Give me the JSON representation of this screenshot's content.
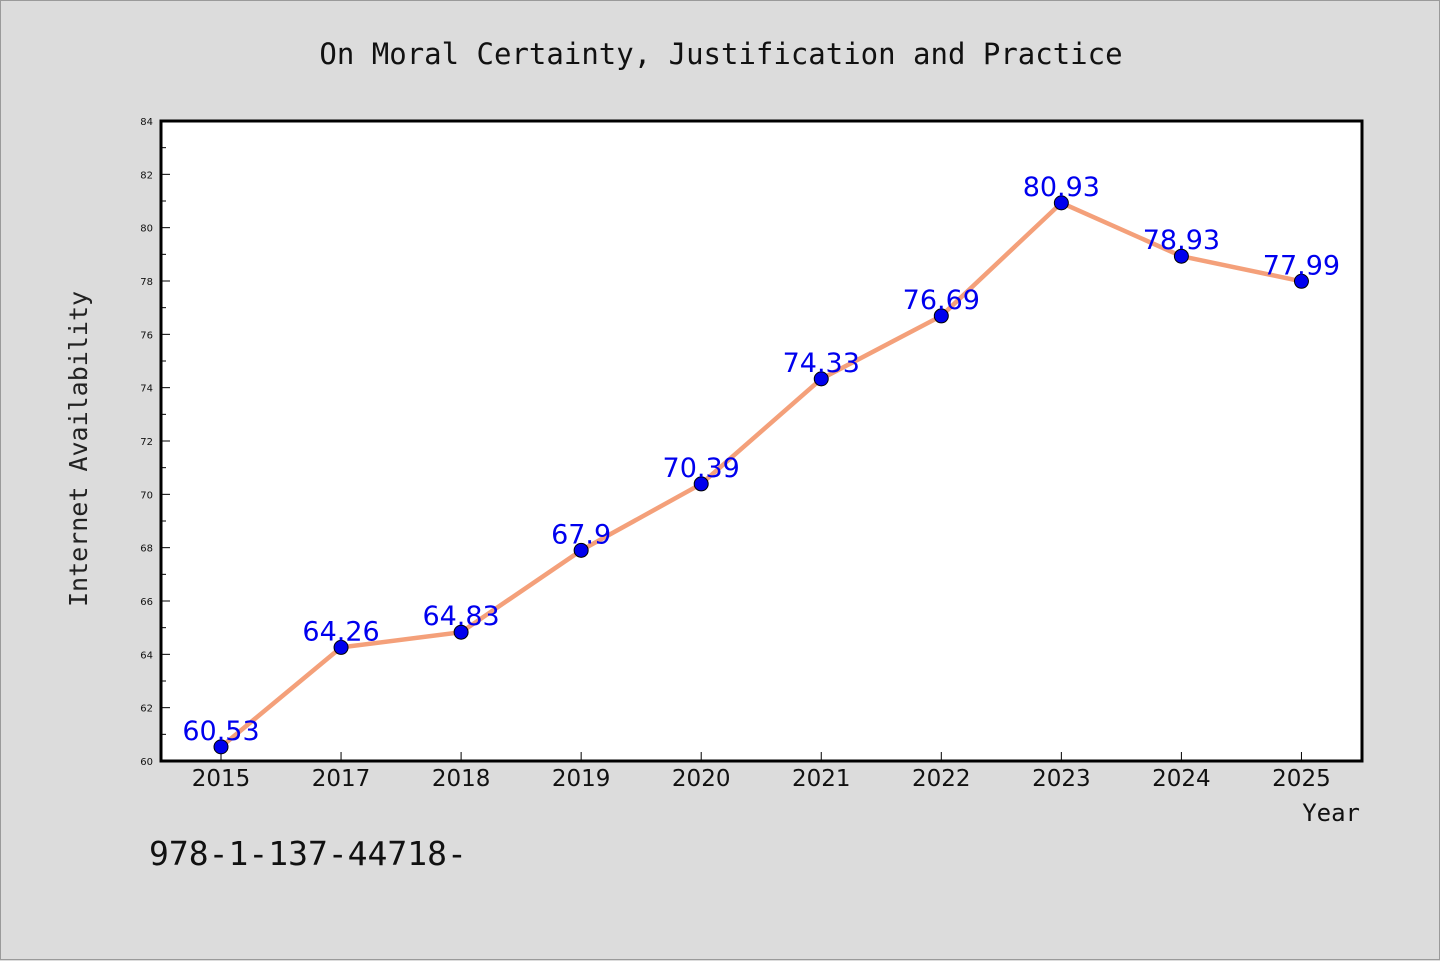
{
  "chart_data": {
    "type": "line",
    "title": "On Moral Certainty, Justification and Practice",
    "xlabel": "Year",
    "ylabel": "Internet Availability",
    "categories": [
      "2015",
      "2017",
      "2018",
      "2019",
      "2020",
      "2021",
      "2022",
      "2023",
      "2024",
      "2025"
    ],
    "series": [
      {
        "values": [
          60.53,
          64.26,
          64.83,
          67.9,
          70.39,
          74.33,
          76.69,
          80.93,
          78.93,
          77.99
        ],
        "labels": [
          "60.53",
          "64.26",
          "64.83",
          "67.9",
          "70.39",
          "74.33",
          "76.69",
          "80.93",
          "78.93",
          "77.99"
        ],
        "line_color": "#f4a07a",
        "marker_color": "#0000ee",
        "label_color": "#0000ee"
      }
    ],
    "ylim": [
      60,
      84
    ],
    "yticks": [
      "60",
      "62",
      "64",
      "66",
      "68",
      "70",
      "72",
      "74",
      "76",
      "78",
      "80",
      "82",
      "84"
    ],
    "grid": false,
    "legend": "none"
  },
  "annotation": "978-1-137-44718-",
  "colors": {
    "background": "#dcdcdc",
    "plot_background": "#ffffff",
    "axes": "#000000"
  }
}
